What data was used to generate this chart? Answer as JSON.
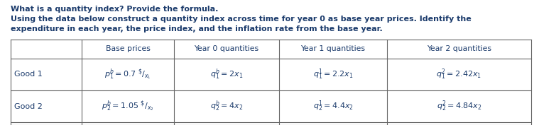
{
  "title_line1": "What is a quantity index? Provide the formula.",
  "title_line2": "Using the data below construct a quantity index across time for year 0 as base year prices. Identify the",
  "title_line3": "expenditure in each year, the price index, and the inflation rate from the base year.",
  "col_headers": [
    "",
    "Base prices",
    "Year 0 quantities",
    "Year 1 quantities",
    "Year 2 quantities"
  ],
  "row_labels": [
    "Good 1",
    "Good 2"
  ],
  "good1_cells": [
    "p^b_1 = 0.7 ^{\\$}/_{x_1}",
    "q^b_1 = 2x_1",
    "q^1_1 = 2.2x_1",
    "q^2_1 = 2.42x_1"
  ],
  "good2_cells": [
    "p^b_2 = 1.05 ^{\\$}/_{x_2}",
    "q^b_2 = 4x_2",
    "q^1_2 = 4.4x_2",
    "q^2_2 = 4.84x_2"
  ],
  "text_color": "#1a3a6b",
  "bg_color": "#ffffff",
  "table_line_color": "#666666",
  "title_font_size": 8.0,
  "header_font_size": 7.8,
  "cell_font_size": 8.0
}
